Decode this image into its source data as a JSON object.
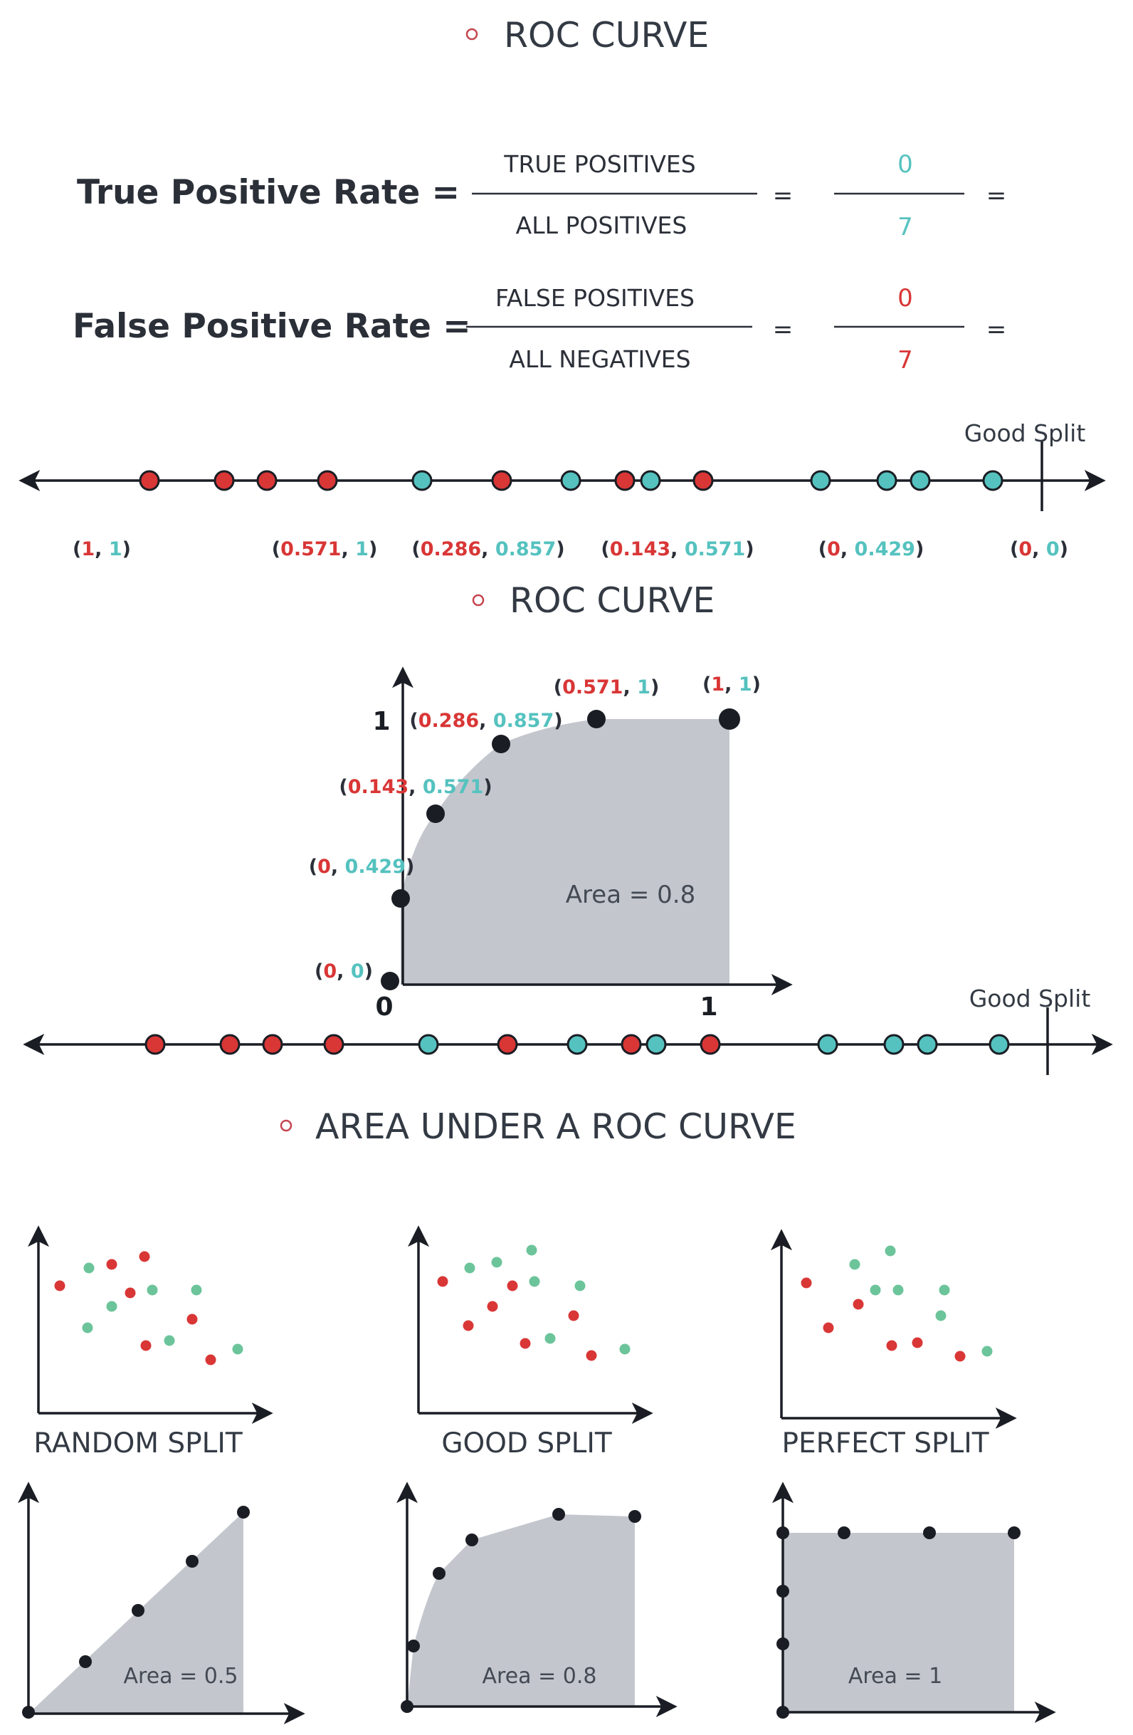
{
  "titles": {
    "roc_curve_1": "ROC CURVE",
    "roc_curve_2": "ROC CURVE",
    "auc": "AREA UNDER A ROC CURVE"
  },
  "tpr": {
    "label": "True Positive Rate =",
    "numerator": "TRUE POSITIVES",
    "denominator": "ALL POSITIVES",
    "equals": "=",
    "value_num": "0",
    "value_den": "7",
    "equals_end": "="
  },
  "fpr": {
    "label": "False Positive Rate =",
    "numerator": "FALSE POSITIVES",
    "denominator": "ALL NEGATIVES",
    "equals": "=",
    "value_num": "0",
    "value_den": "7",
    "equals_end": "="
  },
  "number_line": {
    "good_split_label": "Good Split",
    "point_colors": [
      "red",
      "red",
      "red",
      "red",
      "teal",
      "red",
      "teal",
      "red",
      "teal",
      "red",
      "teal",
      "teal",
      "teal",
      "teal"
    ],
    "coordinate_labels": [
      {
        "fpr": "1",
        "tpr": "1"
      },
      {
        "fpr": "0.571",
        "tpr": "1"
      },
      {
        "fpr": "0.286",
        "tpr": "0.857"
      },
      {
        "fpr": "0.143",
        "tpr": "0.571"
      },
      {
        "fpr": "0",
        "tpr": "0.429"
      },
      {
        "fpr": "0",
        "tpr": "0"
      }
    ]
  },
  "roc_chart": {
    "y_axis_tick": "1",
    "x_axis_tick": "1",
    "origin_tick": "0",
    "area_label": "Area = 0.8",
    "points": [
      {
        "fpr": "0",
        "tpr": "0"
      },
      {
        "fpr": "0",
        "tpr": "0.429"
      },
      {
        "fpr": "0.143",
        "tpr": "0.571"
      },
      {
        "fpr": "0.286",
        "tpr": "0.857"
      },
      {
        "fpr": "0.571",
        "tpr": "1"
      },
      {
        "fpr": "1",
        "tpr": "1"
      }
    ],
    "good_split_label": "Good Split"
  },
  "auc_examples": [
    {
      "label": "RANDOM SPLIT",
      "area_label": "Area = 0.5"
    },
    {
      "label": "GOOD SPLIT",
      "area_label": "Area = 0.8"
    },
    {
      "label": "PERFECT SPLIT",
      "area_label": "Area = 1"
    }
  ],
  "colors": {
    "red": "#d93636",
    "teal": "#55c2bf",
    "green": "#6cc49a",
    "dark": "#2b2f38",
    "area_fill": "#c3c7cd",
    "bullet": "#c4454f"
  }
}
